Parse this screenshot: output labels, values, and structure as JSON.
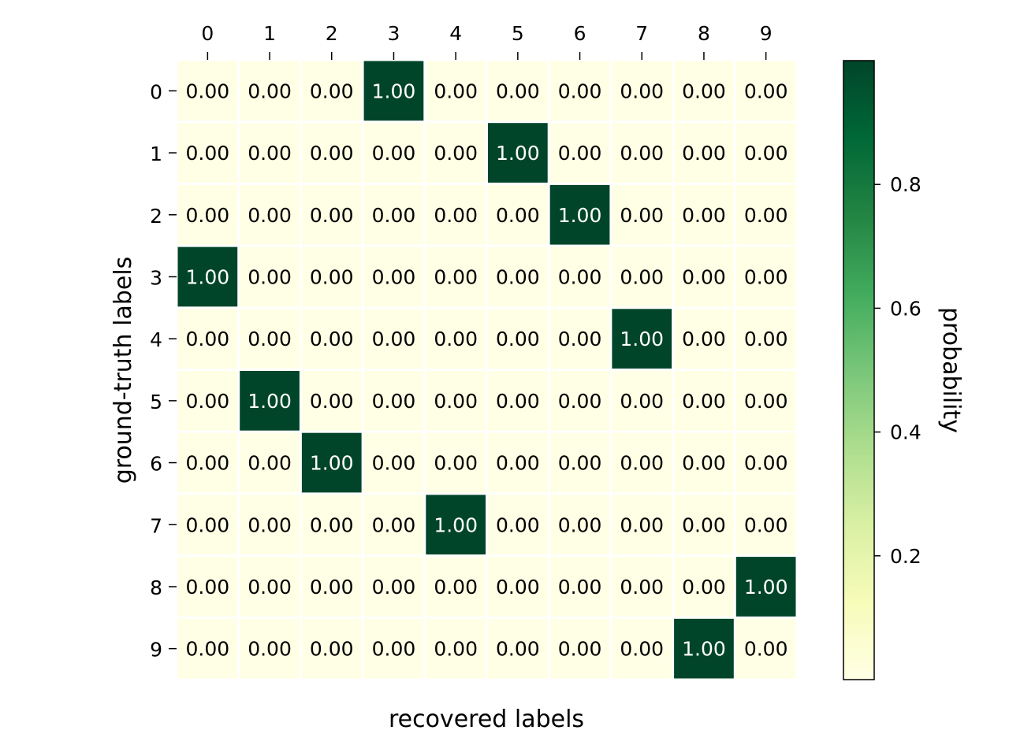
{
  "chart_data": {
    "type": "heatmap",
    "xlabel": "recovered labels",
    "ylabel": "ground-truth labels",
    "x_categories": [
      "0",
      "1",
      "2",
      "3",
      "4",
      "5",
      "6",
      "7",
      "8",
      "9"
    ],
    "y_categories": [
      "0",
      "1",
      "2",
      "3",
      "4",
      "5",
      "6",
      "7",
      "8",
      "9"
    ],
    "x_tick_position": "top",
    "values": [
      [
        0,
        0,
        0,
        1,
        0,
        0,
        0,
        0,
        0,
        0
      ],
      [
        0,
        0,
        0,
        0,
        0,
        1,
        0,
        0,
        0,
        0
      ],
      [
        0,
        0,
        0,
        0,
        0,
        0,
        1,
        0,
        0,
        0
      ],
      [
        1,
        0,
        0,
        0,
        0,
        0,
        0,
        0,
        0,
        0
      ],
      [
        0,
        0,
        0,
        0,
        0,
        0,
        0,
        1,
        0,
        0
      ],
      [
        0,
        1,
        0,
        0,
        0,
        0,
        0,
        0,
        0,
        0
      ],
      [
        0,
        0,
        1,
        0,
        0,
        0,
        0,
        0,
        0,
        0
      ],
      [
        0,
        0,
        0,
        0,
        1,
        0,
        0,
        0,
        0,
        0
      ],
      [
        0,
        0,
        0,
        0,
        0,
        0,
        0,
        0,
        0,
        1
      ],
      [
        0,
        0,
        0,
        0,
        0,
        0,
        0,
        0,
        1,
        0
      ]
    ],
    "cell_label_format": "2 decimals",
    "colorbar": {
      "label": "probability",
      "ticks": [
        "0.2",
        "0.4",
        "0.6",
        "0.8"
      ],
      "tick_values": [
        0.2,
        0.4,
        0.6,
        0.8
      ],
      "range": [
        0,
        1
      ],
      "colormap": "YlGn"
    },
    "colors": {
      "low": "#ffffe5",
      "high": "#004529",
      "cell_border": "#ffffff",
      "text_dark": "#000000",
      "text_light": "#ffffff"
    }
  }
}
